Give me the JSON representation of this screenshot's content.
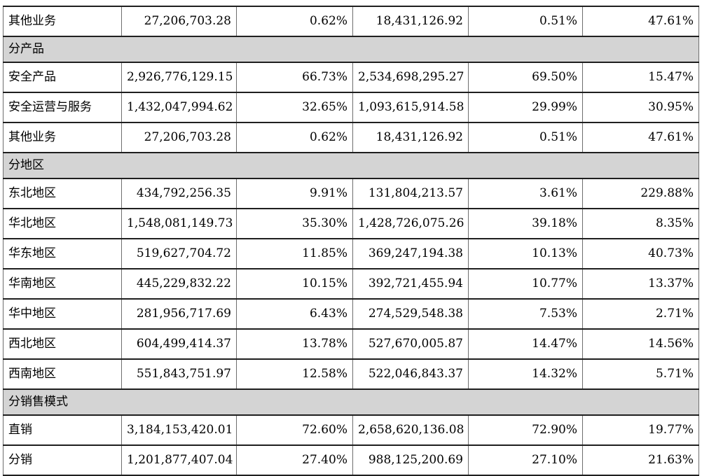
{
  "table": {
    "columns": [
      "label",
      "amount_current_period",
      "pct_of_revenue_current",
      "amount_prior_period",
      "pct_of_revenue_prior",
      "yoy_change_pct"
    ],
    "rows": [
      {
        "type": "data",
        "cells": [
          "其他业务",
          "27,206,703.28",
          "0.62%",
          "18,431,126.92",
          "0.51%",
          "47.61%"
        ]
      },
      {
        "type": "section",
        "cells": [
          "分产品"
        ]
      },
      {
        "type": "data",
        "cells": [
          "安全产品",
          "2,926,776,129.15",
          "66.73%",
          "2,534,698,295.27",
          "69.50%",
          "15.47%"
        ]
      },
      {
        "type": "data",
        "cells": [
          "安全运营与服务",
          "1,432,047,994.62",
          "32.65%",
          "1,093,615,914.58",
          "29.99%",
          "30.95%"
        ]
      },
      {
        "type": "data",
        "cells": [
          "其他业务",
          "27,206,703.28",
          "0.62%",
          "18,431,126.92",
          "0.51%",
          "47.61%"
        ]
      },
      {
        "type": "section",
        "cells": [
          "分地区"
        ]
      },
      {
        "type": "data",
        "cells": [
          "东北地区",
          "434,792,256.35",
          "9.91%",
          "131,804,213.57",
          "3.61%",
          "229.88%"
        ]
      },
      {
        "type": "data",
        "cells": [
          "华北地区",
          "1,548,081,149.73",
          "35.30%",
          "1,428,726,075.26",
          "39.18%",
          "8.35%"
        ]
      },
      {
        "type": "data",
        "cells": [
          "华东地区",
          "519,627,704.72",
          "11.85%",
          "369,247,194.38",
          "10.13%",
          "40.73%"
        ]
      },
      {
        "type": "data",
        "cells": [
          "华南地区",
          "445,229,832.22",
          "10.15%",
          "392,721,455.94",
          "10.77%",
          "13.37%"
        ]
      },
      {
        "type": "data",
        "cells": [
          "华中地区",
          "281,956,717.69",
          "6.43%",
          "274,529,548.38",
          "7.53%",
          "2.71%"
        ]
      },
      {
        "type": "data",
        "cells": [
          "西北地区",
          "604,499,414.37",
          "13.78%",
          "527,670,005.87",
          "14.47%",
          "14.56%"
        ]
      },
      {
        "type": "data",
        "cells": [
          "西南地区",
          "551,843,751.97",
          "12.58%",
          "522,046,843.37",
          "14.32%",
          "5.71%"
        ]
      },
      {
        "type": "section",
        "cells": [
          "分销售模式"
        ]
      },
      {
        "type": "data",
        "cells": [
          "直销",
          "3,184,153,420.01",
          "72.60%",
          "2,658,620,136.08",
          "72.90%",
          "19.77%"
        ]
      },
      {
        "type": "data",
        "cells": [
          "分销",
          "1,201,877,407.04",
          "27.40%",
          "988,125,200.69",
          "27.10%",
          "21.63%"
        ]
      }
    ]
  },
  "colors": {
    "page_bg": "#ffffff",
    "text": "#000000",
    "section_bg": "#d4d4d4",
    "border_horizontal": "#1f1f1f",
    "border_vertical": "#6e6e6e"
  }
}
